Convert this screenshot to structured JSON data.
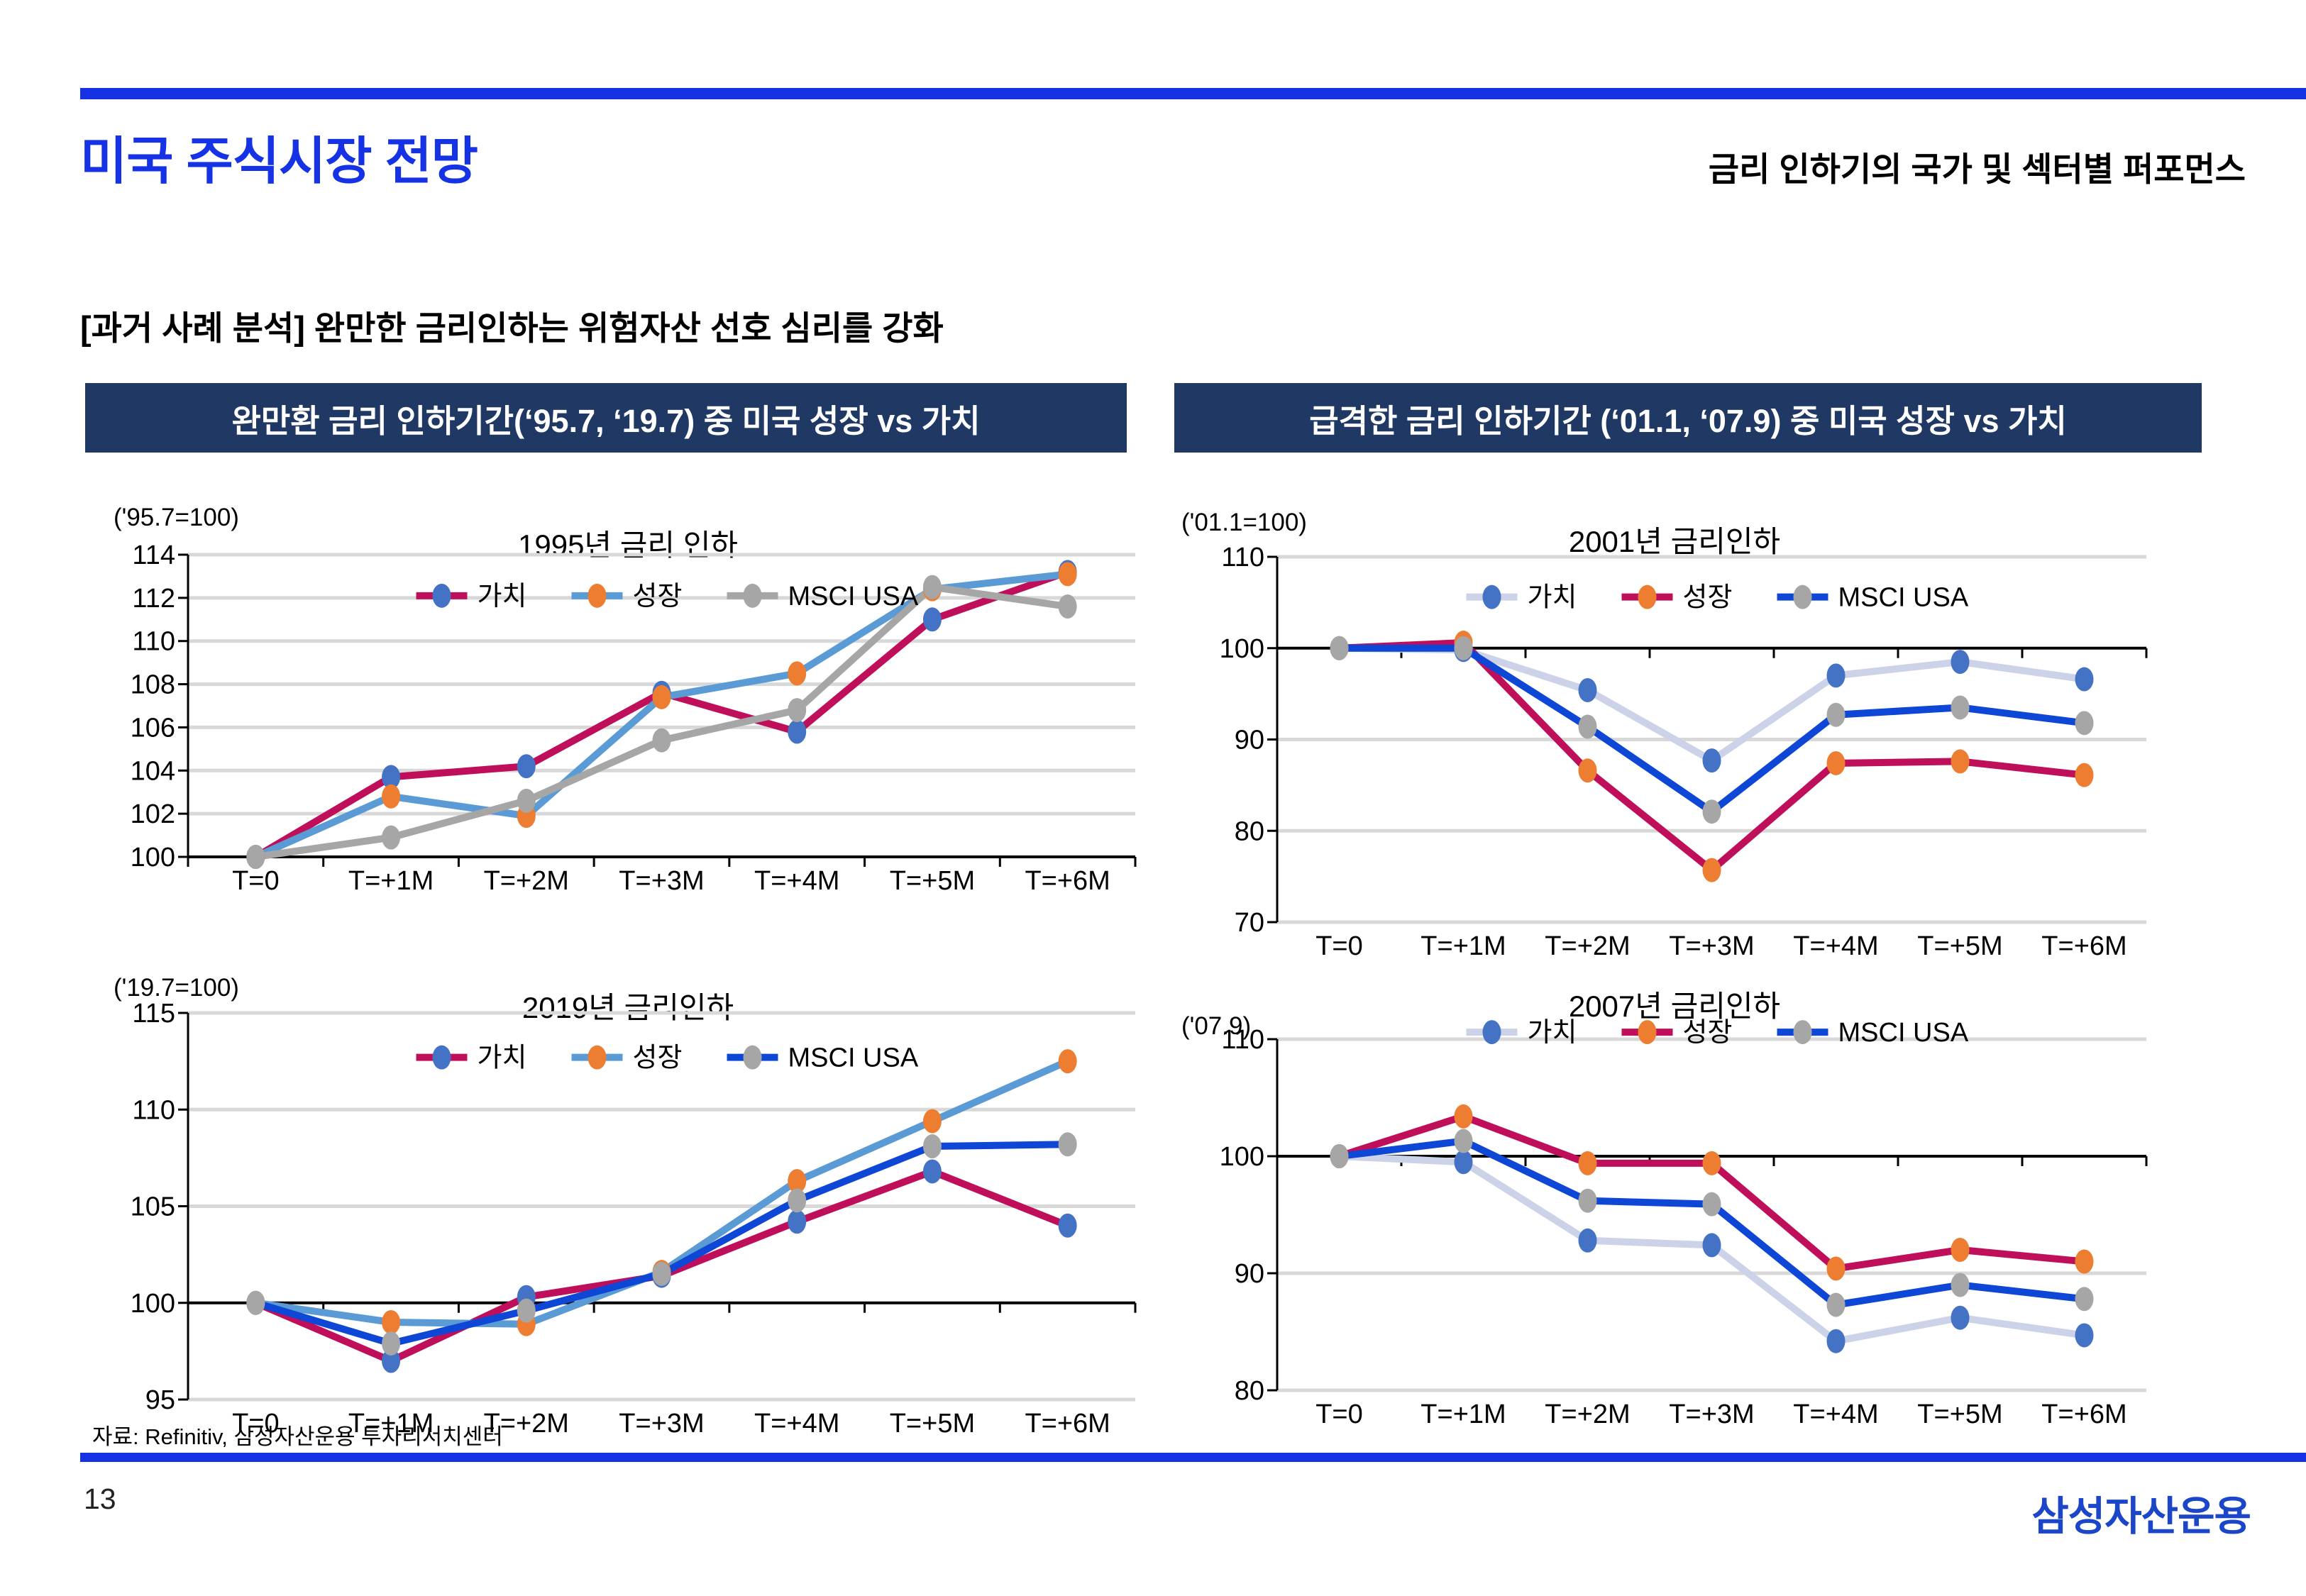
{
  "slide": {
    "top_title": "미국 주식시장 전망",
    "top_right_heading": "금리 인하기의 국가 및 섹터별 퍼포먼스",
    "subtitle": "[과거 사례 분석] 완만한 금리인하는 위험자산 선호 심리를 강화",
    "source_note": "자료: Refinitiv, 삼성자산운용 투자리서치센터",
    "page_number": "13",
    "logo_text": "삼성자산운용"
  },
  "panel_headers": [
    {
      "label": "완만환 금리 인하기간(‘95.7, ‘19.7) 중 미국 성장 vs 가치"
    },
    {
      "label": "급격한 금리 인하기간 (‘01.1, ‘07.9) 중 미국 성장 vs 가치"
    }
  ],
  "colors": {
    "accent_blue": "#1532E4",
    "navy_header_bg": "#1F3864",
    "logo_blue": "#1B46C8",
    "crimson": "#C00F5A",
    "soft_blue": "#5B9BD5",
    "strong_blue": "#0E46D6",
    "lavender": "#CCD2E8",
    "marker_blue": "#4472C4",
    "orange": "#ED7D31",
    "gray": "#A6A6A6",
    "gridline": "#D8D8D8"
  },
  "chart_data": [
    {
      "type": "line",
      "title": "1995년 금리 인하",
      "axis_note": "('95.7=100)",
      "categories": [
        "T=0",
        "T=+1M",
        "T=+2M",
        "T=+3M",
        "T=+4M",
        "T=+5M",
        "T=+6M"
      ],
      "ylim": [
        100,
        114
      ],
      "yticks": [
        100,
        102,
        104,
        106,
        108,
        110,
        112,
        114
      ],
      "axis_cross": 100,
      "legend_position": "top-center-inside",
      "legend_y": 112.1,
      "series": [
        {
          "name": "가치",
          "line": "#C00F5A",
          "marker": "#4472C4",
          "values": [
            100,
            103.7,
            104.2,
            107.6,
            105.8,
            111.0,
            113.2
          ]
        },
        {
          "name": "성장",
          "line": "#5B9BD5",
          "marker": "#ED7D31",
          "values": [
            100,
            102.8,
            101.9,
            107.4,
            108.5,
            112.4,
            113.1
          ]
        },
        {
          "name": "MSCI USA",
          "line": "#A6A6A6",
          "marker": "#A6A6A6",
          "values": [
            100,
            100.9,
            102.6,
            105.4,
            106.8,
            112.5,
            111.6
          ]
        }
      ]
    },
    {
      "type": "line",
      "title": "2001년 금리인하",
      "axis_note": "('01.1=100)",
      "categories": [
        "T=0",
        "T=+1M",
        "T=+2M",
        "T=+3M",
        "T=+4M",
        "T=+5M",
        "T=+6M"
      ],
      "ylim": [
        70,
        110
      ],
      "yticks": [
        70,
        80,
        90,
        100,
        110
      ],
      "axis_cross": 100,
      "legend_position": "top-center-inside",
      "legend_y": 105.6,
      "series": [
        {
          "name": "가치",
          "line": "#CCD2E8",
          "marker": "#4472C4",
          "values": [
            100,
            99.8,
            95.4,
            87.7,
            97.0,
            98.5,
            96.6
          ]
        },
        {
          "name": "성장",
          "line": "#C00F5A",
          "marker": "#ED7D31",
          "values": [
            100,
            100.6,
            86.6,
            75.7,
            87.4,
            87.6,
            86.1
          ]
        },
        {
          "name": "MSCI USA",
          "line": "#0E46D6",
          "marker": "#A6A6A6",
          "values": [
            100,
            100.0,
            91.4,
            82.1,
            92.7,
            93.5,
            91.8
          ]
        }
      ]
    },
    {
      "type": "line",
      "title": "2019년 금리인하",
      "axis_note": "('19.7=100)",
      "categories": [
        "T=0",
        "T=+1M",
        "T=+2M",
        "T=+3M",
        "T=+4M",
        "T=+5M",
        "T=+6M"
      ],
      "ylim": [
        95,
        115
      ],
      "yticks": [
        95,
        100,
        105,
        110,
        115
      ],
      "axis_cross": 100,
      "legend_position": "top-center-inside",
      "legend_y": 112.7,
      "series": [
        {
          "name": "가치",
          "line": "#C00F5A",
          "marker": "#4472C4",
          "values": [
            100,
            97.0,
            100.3,
            101.4,
            104.2,
            106.8,
            104.0
          ]
        },
        {
          "name": "성장",
          "line": "#5B9BD5",
          "marker": "#ED7D31",
          "values": [
            100,
            99.0,
            98.9,
            101.6,
            106.3,
            109.4,
            112.5
          ]
        },
        {
          "name": "MSCI USA",
          "line": "#0E46D6",
          "marker": "#A6A6A6",
          "values": [
            100,
            97.9,
            99.6,
            101.5,
            105.3,
            108.1,
            108.2
          ]
        }
      ]
    },
    {
      "type": "line",
      "title": "2007년 금리인하",
      "axis_note": "('07.9)",
      "categories": [
        "T=0",
        "T=+1M",
        "T=+2M",
        "T=+3M",
        "T=+4M",
        "T=+5M",
        "T=+6M"
      ],
      "ylim": [
        80,
        110
      ],
      "yticks": [
        80,
        90,
        100,
        110
      ],
      "axis_cross": 100,
      "legend_position": "top-center-inside",
      "legend_y": 110.6,
      "series": [
        {
          "name": "가치",
          "line": "#CCD2E8",
          "marker": "#4472C4",
          "values": [
            100,
            99.5,
            92.8,
            92.4,
            84.2,
            86.2,
            84.7
          ]
        },
        {
          "name": "성장",
          "line": "#C00F5A",
          "marker": "#ED7D31",
          "values": [
            100,
            103.4,
            99.4,
            99.4,
            90.4,
            92.0,
            91.0
          ]
        },
        {
          "name": "MSCI USA",
          "line": "#0E46D6",
          "marker": "#A6A6A6",
          "values": [
            100,
            101.3,
            96.2,
            95.9,
            87.3,
            89.0,
            87.8
          ]
        }
      ]
    }
  ]
}
